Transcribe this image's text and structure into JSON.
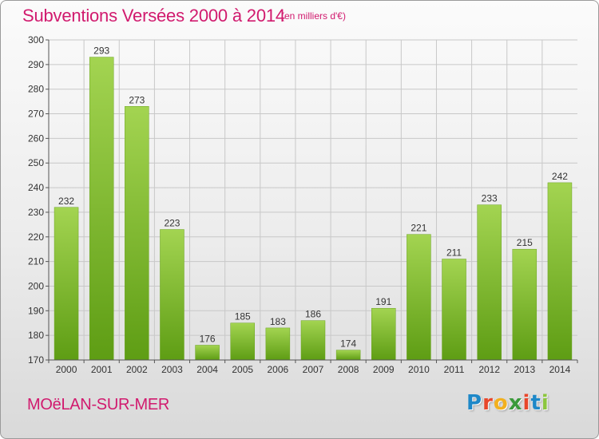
{
  "header": {
    "title": "Subventions Versées 2000 à 2014",
    "subtitle": "(en milliers d'€)"
  },
  "footer": {
    "commune": "MOëLAN-SUR-MER",
    "brand_letters": [
      "P",
      "r",
      "o",
      "x",
      "i",
      "t",
      "i"
    ],
    "brand_colors": [
      "#1e88c8",
      "#e8462a",
      "#f2b01e",
      "#3a9a3a",
      "#e8462a",
      "#1e88c8",
      "#8cc63e"
    ]
  },
  "colors": {
    "bar_top": "#a3d451",
    "bar_bottom": "#5e9d14",
    "grid": "#c8c8c8",
    "axis": "#555555",
    "title": "#d11a6e"
  },
  "chart_data": {
    "type": "bar",
    "title": "Subventions Versées 2000 à 2014",
    "subtitle": "(en milliers d'€)",
    "categories": [
      "2000",
      "2001",
      "2002",
      "2003",
      "2004",
      "2005",
      "2006",
      "2007",
      "2008",
      "2009",
      "2010",
      "2011",
      "2012",
      "2013",
      "2014"
    ],
    "values": [
      232,
      293,
      273,
      223,
      176,
      185,
      183,
      186,
      174,
      191,
      221,
      211,
      233,
      215,
      242
    ],
    "ylim": [
      170,
      300
    ],
    "yticks": [
      170,
      180,
      190,
      200,
      210,
      220,
      230,
      240,
      250,
      260,
      270,
      280,
      290,
      300
    ],
    "grid": true,
    "legend": "none"
  }
}
